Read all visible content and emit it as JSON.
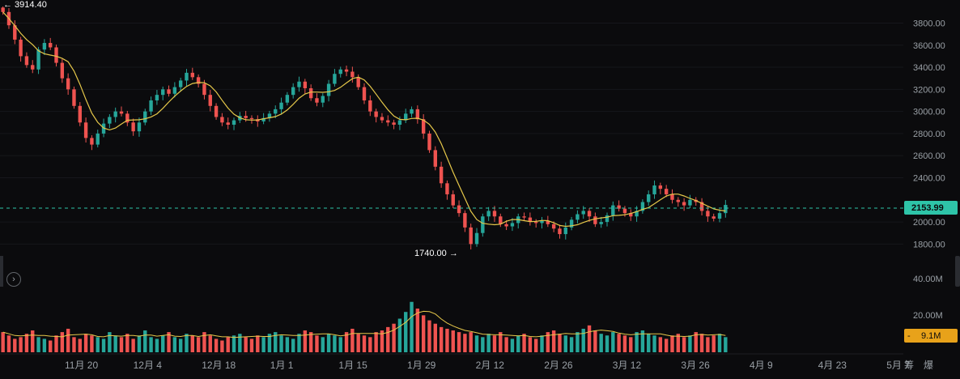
{
  "chart_data": {
    "type": "candlestick",
    "y_axis_labels": [
      "3800.00",
      "3600.00",
      "3400.00",
      "3200.00",
      "3000.00",
      "2800.00",
      "2600.00",
      "2400.00",
      "2000.00",
      "1800.00"
    ],
    "ylim": [
      1700,
      3950
    ],
    "volume_axis_labels": [
      "40.00M",
      "20.00M"
    ],
    "x_labels": [
      "11月 20",
      "12月 4",
      "12月 18",
      "1月 1",
      "1月 15",
      "1月 29",
      "2月 12",
      "2月 26",
      "3月 12",
      "3月 26",
      "4月 9",
      "4月 23",
      "5月 7"
    ],
    "corner_labels": [
      "筹",
      "爆"
    ],
    "high_marker": "← 3914.40",
    "low_marker": "1740.00 →",
    "current_price": "2153.99",
    "current_volume": "9.1M",
    "colors": {
      "up": "#26a69a",
      "down": "#ef5350",
      "ma": "#e6c84a",
      "price_tag": "#2ec4a8",
      "volume_tag": "#e8a21a"
    },
    "price_series": [
      3900,
      3780,
      3650,
      3500,
      3420,
      3380,
      3560,
      3620,
      3580,
      3440,
      3300,
      3200,
      3050,
      2900,
      2760,
      2700,
      2800,
      2890,
      2950,
      3000,
      2980,
      2900,
      2820,
      2900,
      3000,
      3100,
      3150,
      3200,
      3160,
      3220,
      3280,
      3350,
      3310,
      3250,
      3150,
      3050,
      2950,
      2900,
      2880,
      2920,
      2960,
      2940,
      2930,
      2910,
      2940,
      2980,
      3020,
      3080,
      3150,
      3220,
      3270,
      3210,
      3120,
      3080,
      3140,
      3250,
      3340,
      3380,
      3360,
      3310,
      3220,
      3100,
      3000,
      2950,
      2920,
      2900,
      2880,
      2920,
      2980,
      3020,
      2930,
      2800,
      2650,
      2500,
      2350,
      2250,
      2150,
      2080,
      1950,
      1800,
      1900,
      2050,
      2100,
      2050,
      1980,
      1960,
      1990,
      2050,
      2040,
      2000,
      1990,
      2010,
      1980,
      1940,
      1890,
      1950,
      2020,
      2070,
      2100,
      2050,
      1980,
      2000,
      2060,
      2150,
      2120,
      2080,
      2050,
      2100,
      2180,
      2250,
      2330,
      2300,
      2250,
      2200,
      2180,
      2150,
      2200,
      2180,
      2100,
      2050,
      2030,
      2080,
      2154
    ],
    "volume_series": [
      12,
      10,
      8,
      9,
      11,
      13,
      9,
      8,
      7,
      10,
      12,
      14,
      9,
      8,
      11,
      10,
      9,
      8,
      12,
      10,
      9,
      11,
      8,
      10,
      13,
      9,
      8,
      10,
      12,
      9,
      8,
      11,
      10,
      9,
      12,
      10,
      8,
      7,
      9,
      10,
      11,
      9,
      8,
      10,
      9,
      11,
      12,
      10,
      9,
      8,
      11,
      13,
      12,
      10,
      9,
      11,
      10,
      9,
      12,
      14,
      11,
      10,
      9,
      12,
      13,
      15,
      17,
      20,
      24,
      30,
      26,
      22,
      19,
      17,
      15,
      14,
      13,
      12,
      11,
      12,
      10,
      9,
      11,
      10,
      12,
      9,
      8,
      10,
      11,
      9,
      8,
      10,
      12,
      13,
      11,
      10,
      9,
      12,
      14,
      16,
      13,
      11,
      10,
      12,
      11,
      10,
      9,
      12,
      13,
      11,
      10,
      9,
      8,
      10,
      11,
      9,
      10,
      12,
      11,
      9,
      10,
      11,
      9
    ]
  }
}
